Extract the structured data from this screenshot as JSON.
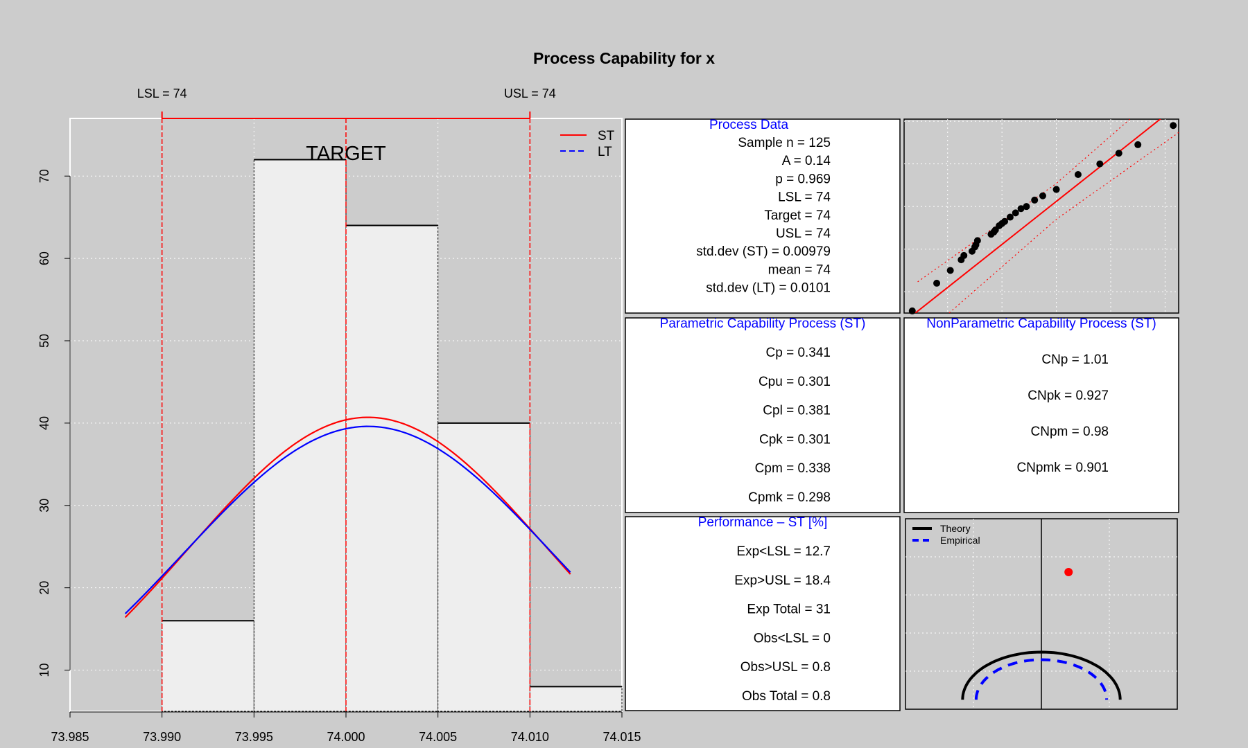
{
  "title": "Process Capability for x",
  "spec_labels": {
    "lsl": "LSL = 74",
    "usl": "USL = 74"
  },
  "target_label": "TARGET",
  "legend": [
    {
      "label": "ST",
      "color": "#ff0000",
      "dash": false
    },
    {
      "label": "LT",
      "color": "#0000ff",
      "dash": true
    }
  ],
  "colors": {
    "background": "#cccccc",
    "bar_fill": "#eeeeee",
    "st": "#ff0000",
    "lt": "#0000ff",
    "panel_title": "#0000ff",
    "grid": "#ffffff"
  },
  "chart_data": [
    {
      "type": "bar",
      "subtype": "histogram",
      "bins": [
        {
          "from": 73.99,
          "to": 73.995,
          "count": 16
        },
        {
          "from": 73.995,
          "to": 74.0,
          "count": 72
        },
        {
          "from": 74.0,
          "to": 74.005,
          "count": 64
        },
        {
          "from": 74.005,
          "to": 74.01,
          "count": 40
        },
        {
          "from": 74.01,
          "to": 74.015,
          "count": 8
        }
      ],
      "xlim": [
        73.985,
        74.015
      ],
      "ylim": [
        5,
        77
      ],
      "x_ticks": [
        "73.985",
        "73.990",
        "73.995",
        "74.000",
        "74.005",
        "74.010",
        "74.015"
      ],
      "y_ticks": [
        "10",
        "20",
        "30",
        "40",
        "50",
        "60",
        "70"
      ],
      "spec_lines": {
        "lsl": 73.99,
        "target": 74.0,
        "usl": 74.01
      },
      "curves": [
        {
          "name": "ST",
          "mean": 74.0012,
          "sd": 0.00979,
          "peak": 40.7,
          "x_range": [
            73.988,
            74.0122
          ]
        },
        {
          "name": "LT",
          "mean": 74.0012,
          "sd": 0.0101,
          "peak": 39.6,
          "x_range": [
            73.988,
            74.0122
          ]
        }
      ],
      "grid": true
    },
    {
      "type": "scatter",
      "subtype": "qq-plot",
      "points": [
        [
          -2.65,
          73.9755
        ],
        [
          -2.2,
          73.982
        ],
        [
          -1.95,
          73.985
        ],
        [
          -1.75,
          73.9875
        ],
        [
          -1.7,
          73.9885
        ],
        [
          -1.55,
          73.9895
        ],
        [
          -1.5,
          73.9905
        ],
        [
          -1.48,
          73.991
        ],
        [
          -1.45,
          73.992
        ],
        [
          -1.2,
          73.9935
        ],
        [
          -1.15,
          73.994
        ],
        [
          -1.12,
          73.9945
        ],
        [
          -1.05,
          73.9955
        ],
        [
          -1.0,
          73.996
        ],
        [
          -0.95,
          73.9965
        ],
        [
          -0.85,
          73.9975
        ],
        [
          -0.75,
          73.9985
        ],
        [
          -0.65,
          73.9995
        ],
        [
          -0.55,
          74.0
        ],
        [
          -0.4,
          74.0015
        ],
        [
          -0.25,
          74.0025
        ],
        [
          0.0,
          74.004
        ],
        [
          0.4,
          74.0075
        ],
        [
          0.8,
          74.01
        ],
        [
          1.15,
          74.0125
        ],
        [
          1.5,
          74.0145
        ],
        [
          2.15,
          74.019
        ]
      ],
      "xlim": [
        -2.8,
        2.25
      ],
      "ylim": [
        73.975,
        74.0205
      ],
      "fit_line": {
        "intercept": 74.0012,
        "slope": 0.0101
      },
      "band_offset": 0.0042,
      "grid": true
    },
    {
      "type": "scatter",
      "subtype": "capability-plot",
      "legend": [
        {
          "label": "Theory",
          "color": "#000000",
          "dash": false
        },
        {
          "label": "Empirical",
          "color": "#0000ff",
          "dash": true
        }
      ],
      "point": {
        "x": 0.2,
        "y": 0.72,
        "color": "#ff0000"
      },
      "theory_arc": {
        "rx": 0.58,
        "ry": 0.25
      },
      "empirical_arc": {
        "rx": 0.48,
        "ry": 0.21
      },
      "xlim": [
        -1,
        1
      ],
      "ylim": [
        0,
        1
      ],
      "grid": true
    }
  ],
  "panels": {
    "process_data": {
      "title": "Process Data",
      "lines": [
        "Sample n = 125",
        "A = 0.14",
        "p = 0.969",
        "LSL = 74",
        "Target = 74",
        "USL = 74",
        "std.dev (ST) = 0.00979",
        "mean = 74",
        "std.dev (LT) = 0.0101"
      ]
    },
    "parametric": {
      "title": "Parametric Capability Process (ST)",
      "lines": [
        "Cp = 0.341",
        "Cpu = 0.301",
        "Cpl = 0.381",
        "Cpk = 0.301",
        "Cpm = 0.338",
        "Cpmk = 0.298"
      ]
    },
    "nonparametric": {
      "title": "NonParametric Capability Process (ST)",
      "lines": [
        "CNp = 1.01",
        "CNpk = 0.927",
        "CNpm = 0.98",
        "CNpmk = 0.901"
      ]
    },
    "performance": {
      "title": "Performance – ST [%]",
      "lines": [
        "Exp<LSL = 12.7",
        "Exp>USL = 18.4",
        "Exp Total = 31",
        "Obs<LSL = 0",
        "Obs>USL = 0.8",
        "Obs Total = 0.8"
      ]
    }
  }
}
